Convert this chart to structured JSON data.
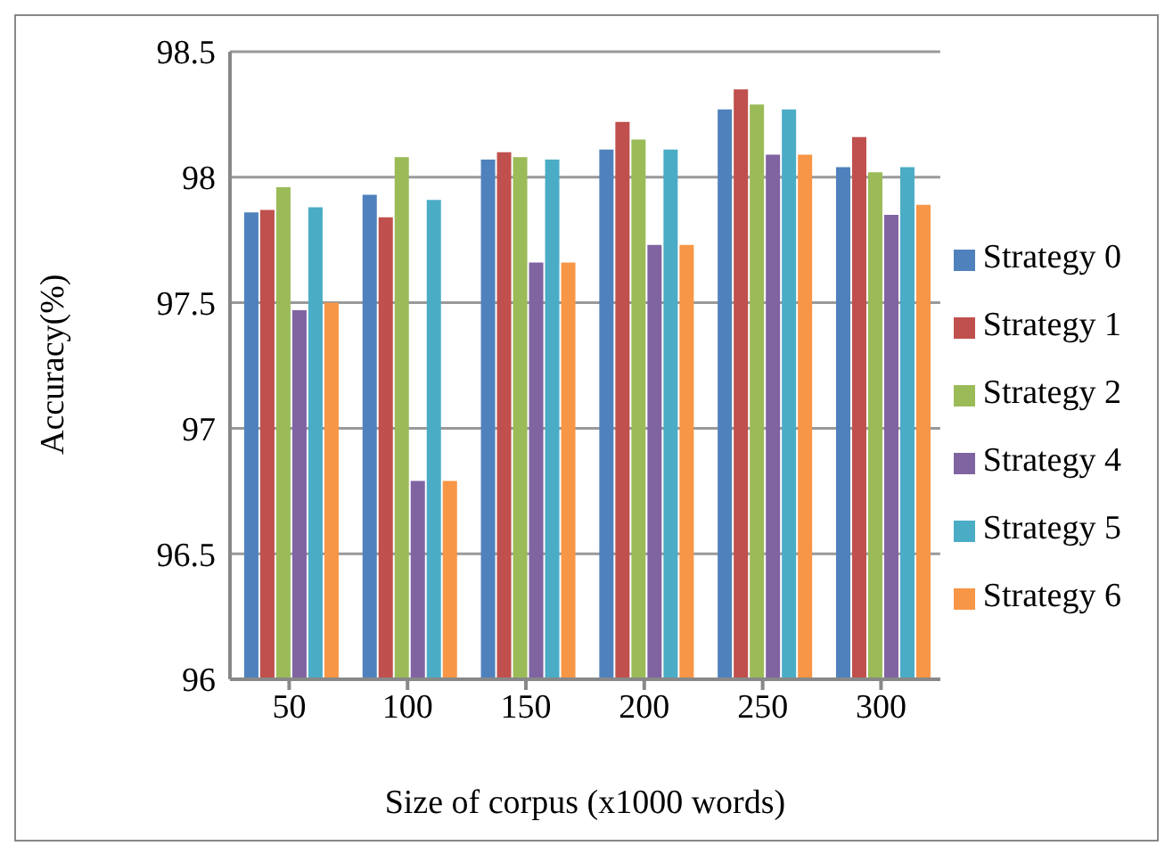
{
  "chart_data": {
    "type": "bar",
    "xlabel": "Size of corpus (x1000 words)",
    "ylabel": "Accuracy(%)",
    "categories": [
      "50",
      "100",
      "150",
      "200",
      "250",
      "300"
    ],
    "series": [
      {
        "name": "Strategy 0",
        "color": "#4f81bd",
        "values": [
          97.86,
          97.93,
          98.07,
          98.11,
          98.27,
          98.04
        ]
      },
      {
        "name": "Strategy 1",
        "color": "#c0504d",
        "values": [
          97.87,
          97.84,
          98.1,
          98.22,
          98.35,
          98.16
        ]
      },
      {
        "name": "Strategy 2",
        "color": "#9bbb59",
        "values": [
          97.96,
          98.08,
          98.08,
          98.15,
          98.29,
          98.02
        ]
      },
      {
        "name": "Strategy 4",
        "color": "#8064a2",
        "values": [
          97.47,
          96.79,
          97.66,
          97.73,
          98.09,
          97.85
        ]
      },
      {
        "name": "Strategy 5",
        "color": "#4bacc6",
        "values": [
          97.88,
          97.91,
          98.07,
          98.11,
          98.27,
          98.04
        ]
      },
      {
        "name": "Strategy 6",
        "color": "#f79646",
        "values": [
          97.5,
          96.79,
          97.66,
          97.73,
          98.09,
          97.89
        ]
      }
    ],
    "ylim": [
      96,
      98.5
    ],
    "yticks": [
      96,
      96.5,
      97,
      97.5,
      98,
      98.5
    ],
    "grid": "y",
    "legend": "right"
  }
}
